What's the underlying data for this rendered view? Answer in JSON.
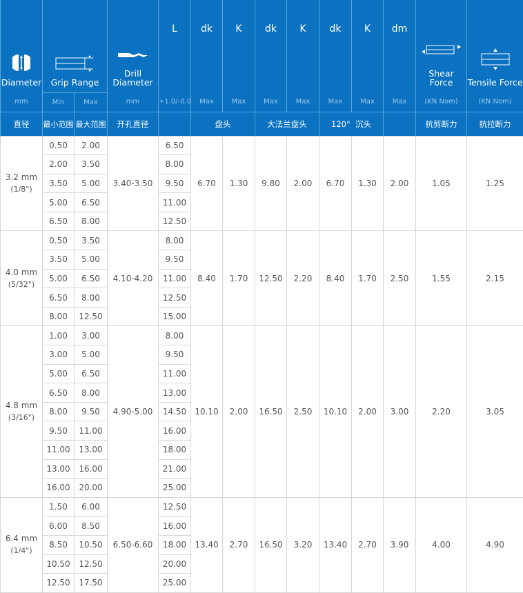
{
  "header": {
    "diameter": {
      "label": "Diameter",
      "unit": "mm",
      "cn": "直径",
      "icon": "diameter-icon"
    },
    "grip_range": {
      "label": "Grip Range",
      "min": "Min",
      "max": "Max",
      "cn_min": "最小范围",
      "cn_max": "最大范围",
      "icon": "grip-range-icon"
    },
    "drill": {
      "label1": "Drill",
      "label2": "Diameter",
      "unit": "mm",
      "cn": "开孔直径",
      "icon": "drill-bit-icon"
    },
    "L": {
      "label": "L",
      "unit": "+1.0/-0.0"
    },
    "cols": [
      {
        "label": "dk",
        "unit": "Max"
      },
      {
        "label": "K",
        "unit": "Max"
      },
      {
        "label": "dk",
        "unit": "Max"
      },
      {
        "label": "K",
        "unit": "Max"
      },
      {
        "label": "dk",
        "unit": "Max"
      },
      {
        "label": "K",
        "unit": "Max"
      },
      {
        "label": "dm",
        "unit": "Max"
      }
    ],
    "groups_cn": [
      "盘头",
      "大法兰盘头",
      "120°  沉头"
    ],
    "shear": {
      "label": "Shear Force",
      "unit": "(KN Nom)",
      "cn": "抗剪断力",
      "icon": "shear-force-icon"
    },
    "tensile": {
      "label": "Tensile Force",
      "unit": "(KN Nom)",
      "cn": "抗拉断力",
      "icon": "tensile-force-icon"
    }
  },
  "rows": [
    {
      "diameter": "3.2 mm",
      "inch": "(1/8\")",
      "drill": "3.40-3.50",
      "grip": [
        [
          "0.50",
          "2.00"
        ],
        [
          "2.00",
          "3.50"
        ],
        [
          "3.50",
          "5.00"
        ],
        [
          "5.00",
          "6.50"
        ],
        [
          "6.50",
          "8.00"
        ]
      ],
      "L": [
        "6.50",
        "8.00",
        "9.50",
        "11.00",
        "12.50"
      ],
      "specs": [
        "6.70",
        "1.30",
        "9.80",
        "2.00",
        "6.70",
        "1.30",
        "2.00"
      ],
      "shear": "1.05",
      "tensile": "1.25"
    },
    {
      "diameter": "4.0 mm",
      "inch": "(5/32\")",
      "drill": "4.10-4.20",
      "grip": [
        [
          "0.50",
          "3.50"
        ],
        [
          "3.50",
          "5.00"
        ],
        [
          "5.00",
          "6.50"
        ],
        [
          "6.50",
          "8.00"
        ],
        [
          "8.00",
          "12.50"
        ]
      ],
      "L": [
        "8.00",
        "9.50",
        "11.00",
        "12.50",
        "15.00"
      ],
      "specs": [
        "8.40",
        "1.70",
        "12.50",
        "2.20",
        "8.40",
        "1.70",
        "2.50"
      ],
      "shear": "1.55",
      "tensile": "2.15"
    },
    {
      "diameter": "4.8 mm",
      "inch": "(3/16\")",
      "drill": "4.90-5.00",
      "grip": [
        [
          "1.00",
          "3.00"
        ],
        [
          "3.00",
          "5.00"
        ],
        [
          "5.00",
          "6.50"
        ],
        [
          "6.50",
          "8.00"
        ],
        [
          "8.00",
          "9.50"
        ],
        [
          "9.50",
          "11.00"
        ],
        [
          "11.00",
          "13.00"
        ],
        [
          "13.00",
          "16.00"
        ],
        [
          "16.00",
          "20.00"
        ]
      ],
      "L": [
        "8.00",
        "9.50",
        "11.00",
        "13.00",
        "14.50",
        "16.00",
        "18.00",
        "21.00",
        "25.00"
      ],
      "specs": [
        "10.10",
        "2.00",
        "16.50",
        "2.50",
        "10.10",
        "2.00",
        "3.00"
      ],
      "shear": "2.20",
      "tensile": "3.05"
    },
    {
      "diameter": "6.4 mm",
      "inch": "(1/4\")",
      "drill": "6.50-6.60",
      "grip": [
        [
          "1.50",
          "6.00"
        ],
        [
          "6.00",
          "8.50"
        ],
        [
          "8.50",
          "10.50"
        ],
        [
          "10.50",
          "12.50"
        ],
        [
          "12.50",
          "17.50"
        ]
      ],
      "L": [
        "12.50",
        "16.00",
        "18.00",
        "20.00",
        "25.00"
      ],
      "specs": [
        "13.40",
        "2.70",
        "16.50",
        "3.20",
        "13.40",
        "2.70",
        "3.90"
      ],
      "shear": "4.00",
      "tensile": "4.90"
    }
  ],
  "colors": {
    "header_bg": "#0a72c1",
    "border": "#d6d6d6",
    "text": "#555555"
  }
}
